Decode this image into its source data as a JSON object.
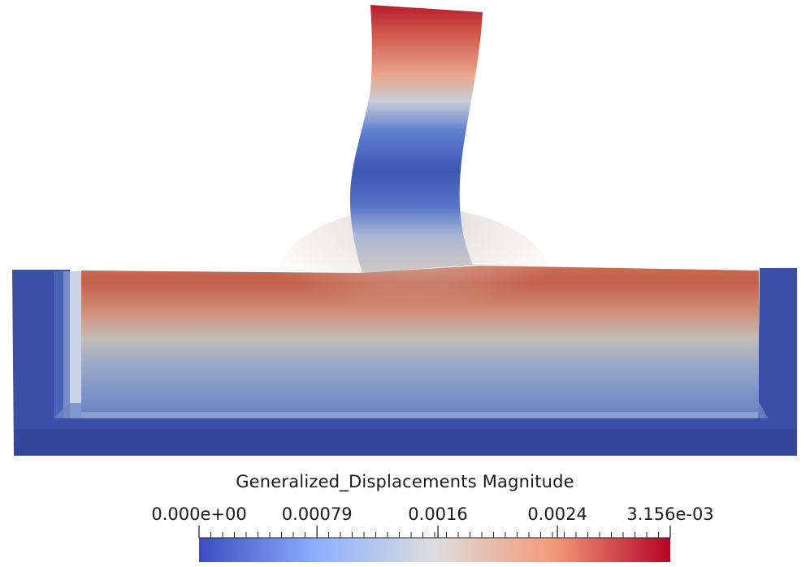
{
  "scalar_bar": {
    "title": "Generalized_Displacements Magnitude",
    "min": 0.0,
    "max": 0.003156,
    "labels": [
      {
        "text": "0.000e+00",
        "value": 0.0
      },
      {
        "text": "0.00079",
        "value": 0.00079
      },
      {
        "text": "0.0016",
        "value": 0.0016
      },
      {
        "text": "0.0024",
        "value": 0.0024
      },
      {
        "text": "3.156e-03",
        "value": 0.003156
      }
    ],
    "colormap": [
      "#3b4cc0",
      "#8db0fe",
      "#dddddd",
      "#f49a7b",
      "#b40426"
    ]
  }
}
